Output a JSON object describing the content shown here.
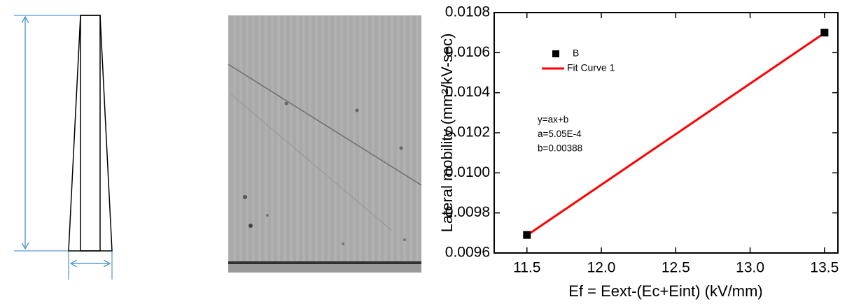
{
  "chart_data": {
    "type": "scatter",
    "x_label": "Ef = Eext-(Ec+Eint) (kV/mm)",
    "y_label": "Lateral mobility (mm²/kV-sec)",
    "x": [
      11.5,
      13.5
    ],
    "series": [
      {
        "name": "B",
        "color": "#000000",
        "kind": "marker",
        "values": [
          0.00969,
          0.0107
        ]
      },
      {
        "name": "Fit Curve 1",
        "color": "#ff0000",
        "kind": "line",
        "values": [
          0.009688,
          0.010698
        ]
      }
    ],
    "annotations": [
      "y=ax+b",
      "a=5.05E-4",
      "b=0.00388"
    ],
    "xlim": [
      11.28,
      13.59
    ],
    "ylim": [
      0.0096,
      0.0108
    ],
    "xticks": [
      11.5,
      {
        "value": 12,
        "label": "12.0"
      },
      12.5,
      {
        "value": 13,
        "label": "13.0"
      },
      13.5
    ],
    "yticks": [
      0.0096,
      0.0098,
      {
        "value": 0.01,
        "label": "0.0100"
      },
      0.0102,
      0.0104,
      0.0106,
      0.0108
    ]
  }
}
